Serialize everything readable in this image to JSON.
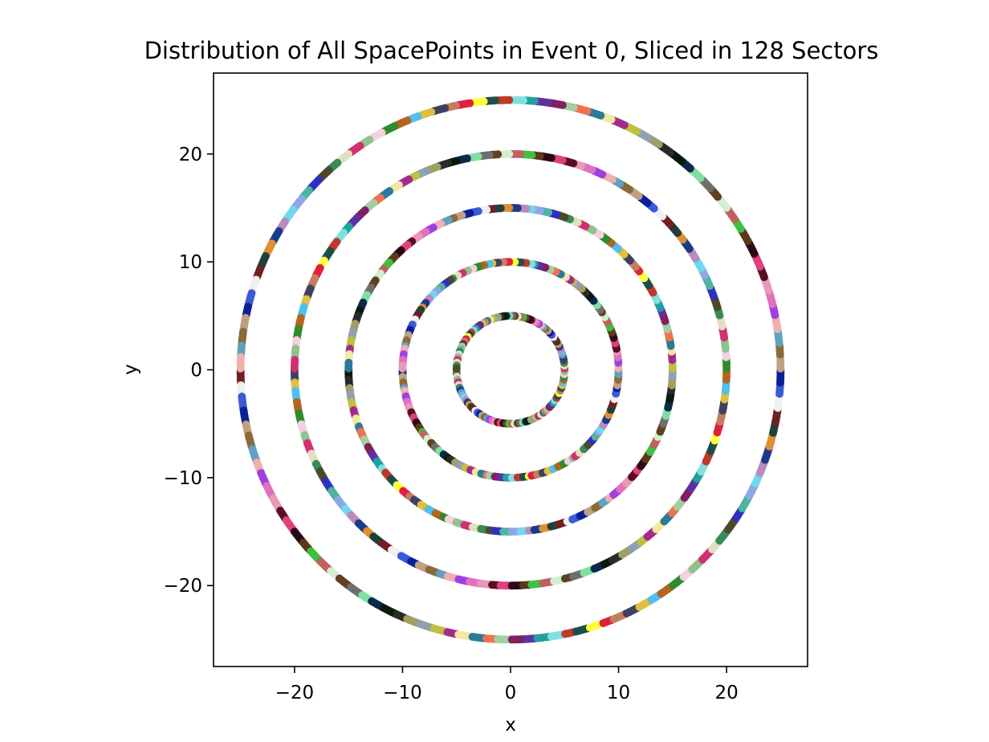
{
  "chart_data": {
    "type": "scatter",
    "title": "Distribution of All SpacePoints in Event 0, Sliced in 128 Sectors",
    "xlabel": "x",
    "ylabel": "y",
    "xlim": [
      -27.5,
      27.5
    ],
    "ylim": [
      -27.5,
      27.5
    ],
    "x_ticks": [
      -20,
      -10,
      0,
      10,
      20
    ],
    "y_ticks": [
      -20,
      -10,
      0,
      10,
      20
    ],
    "x_tick_labels": [
      "−20",
      "−10",
      "0",
      "10",
      "20"
    ],
    "y_tick_labels": [
      "−20",
      "−10",
      "0",
      "10",
      "20"
    ],
    "grid": false,
    "legend": "none",
    "ring_radii": [
      5,
      10,
      15,
      20,
      25
    ],
    "sector_count": 128,
    "sector_palette": [
      "#b5651d",
      "#a52a8c",
      "#e899b8",
      "#4fb3a0",
      "#c0392b",
      "#6e6e6e",
      "#3a5ad8",
      "#2e8b2e",
      "#f3e9a0",
      "#5a0f1f",
      "#8ea8e6",
      "#1b4f4a",
      "#7ee0a0",
      "#0b1f99",
      "#f5d0e0",
      "#2a7a9a",
      "#e04080",
      "#70d8f0",
      "#ffff40",
      "#0b2a4a",
      "#c0a080",
      "#8fc28f",
      "#f07050",
      "#2a0a18",
      "#b88ac0",
      "#e02040",
      "#0a1a0a",
      "#8b6a3a",
      "#d03070",
      "#a0d0a0",
      "#5a3a1a",
      "#1a3a8a",
      "#c08060",
      "#2a2a2a",
      "#60a0c0",
      "#e0e0c0",
      "#802060",
      "#40c040",
      "#e09030",
      "#404060",
      "#a0a060",
      "#f0b0b0",
      "#3a8a5a",
      "#6030a0",
      "#c06060",
      "#204040",
      "#e0c040",
      "#90a0b0",
      "#a040e0",
      "#4a4a2a",
      "#20a0a0",
      "#d0f0d0",
      "#702020",
      "#50c0f0",
      "#c0c040",
      "#e070c0",
      "#3030c0",
      "#80e0e0",
      "#604020",
      "#f0f0f0"
    ]
  }
}
